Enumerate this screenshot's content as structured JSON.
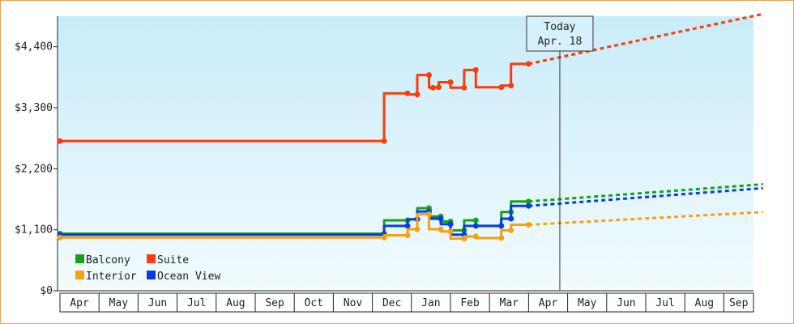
{
  "chart_data": {
    "type": "line",
    "title": "",
    "xlabel": "",
    "ylabel": "",
    "ylim": [
      0,
      4950
    ],
    "y_ticks": [
      0,
      1100,
      2200,
      3300,
      4400
    ],
    "y_tick_labels": [
      "$0",
      "$1,100",
      "$2,200",
      "$3,300",
      "$4,400"
    ],
    "x_range": [
      0,
      18
    ],
    "x_tick_labels": [
      "Apr",
      "May",
      "Jun",
      "Jul",
      "Aug",
      "Sep",
      "Oct",
      "Nov",
      "Dec",
      "Jan",
      "Feb",
      "Mar",
      "Apr",
      "May",
      "Jun",
      "Jul",
      "Aug",
      "Sep"
    ],
    "today": {
      "x": 12.8,
      "label_line1": "Today",
      "label_line2": "Apr. 18"
    },
    "legend": {
      "placement": "bottom-left"
    },
    "grid": false,
    "colors": {
      "frame": "#e8a15a",
      "bg_top": "#c9ecfa",
      "bg_bottom": "#f2fbfe"
    },
    "series": [
      {
        "name": "Suite",
        "color": "#ff3b0a",
        "points": [
          [
            0,
            2700
          ],
          [
            8.3,
            2700
          ],
          [
            8.3,
            3560
          ],
          [
            8.9,
            3560
          ],
          [
            8.9,
            3540
          ],
          [
            9.15,
            3540
          ],
          [
            9.15,
            3890
          ],
          [
            9.45,
            3890
          ],
          [
            9.45,
            3660
          ],
          [
            9.55,
            3660
          ],
          [
            9.55,
            3670
          ],
          [
            9.7,
            3670
          ],
          [
            9.7,
            3760
          ],
          [
            10.0,
            3760
          ],
          [
            10.0,
            3660
          ],
          [
            10.35,
            3660
          ],
          [
            10.35,
            3980
          ],
          [
            10.65,
            3980
          ],
          [
            10.65,
            3670
          ],
          [
            11.3,
            3670
          ],
          [
            11.3,
            3700
          ],
          [
            11.55,
            3700
          ],
          [
            11.55,
            4090
          ],
          [
            12.0,
            4090
          ]
        ],
        "projection": [
          [
            12.0,
            4090
          ],
          [
            18.0,
            4990
          ]
        ]
      },
      {
        "name": "Balcony",
        "color": "#17a317",
        "points": [
          [
            0,
            1030
          ],
          [
            8.3,
            1030
          ],
          [
            8.3,
            1270
          ],
          [
            8.9,
            1270
          ],
          [
            8.9,
            1290
          ],
          [
            9.15,
            1290
          ],
          [
            9.15,
            1490
          ],
          [
            9.45,
            1490
          ],
          [
            9.45,
            1340
          ],
          [
            9.75,
            1340
          ],
          [
            9.75,
            1250
          ],
          [
            10.0,
            1250
          ],
          [
            10.0,
            1090
          ],
          [
            10.35,
            1090
          ],
          [
            10.35,
            1270
          ],
          [
            10.65,
            1270
          ],
          [
            10.65,
            1170
          ],
          [
            11.3,
            1170
          ],
          [
            11.3,
            1420
          ],
          [
            11.55,
            1420
          ],
          [
            11.55,
            1610
          ],
          [
            12.0,
            1610
          ]
        ],
        "projection": [
          [
            12.0,
            1610
          ],
          [
            18.0,
            1920
          ]
        ]
      },
      {
        "name": "Ocean View",
        "color": "#0a3ce6",
        "points": [
          [
            0,
            1010
          ],
          [
            8.3,
            1010
          ],
          [
            8.3,
            1170
          ],
          [
            8.9,
            1170
          ],
          [
            8.9,
            1290
          ],
          [
            9.15,
            1290
          ],
          [
            9.15,
            1430
          ],
          [
            9.45,
            1430
          ],
          [
            9.45,
            1300
          ],
          [
            9.75,
            1300
          ],
          [
            9.75,
            1200
          ],
          [
            10.0,
            1200
          ],
          [
            10.0,
            1010
          ],
          [
            10.35,
            1010
          ],
          [
            10.35,
            1170
          ],
          [
            10.65,
            1170
          ],
          [
            10.65,
            1170
          ],
          [
            11.3,
            1170
          ],
          [
            11.3,
            1300
          ],
          [
            11.55,
            1300
          ],
          [
            11.55,
            1530
          ],
          [
            12.0,
            1530
          ]
        ],
        "projection": [
          [
            12.0,
            1530
          ],
          [
            18.0,
            1850
          ]
        ]
      },
      {
        "name": "Interior",
        "color": "#f5a20f",
        "points": [
          [
            0,
            960
          ],
          [
            8.3,
            960
          ],
          [
            8.3,
            1000
          ],
          [
            8.9,
            1000
          ],
          [
            8.9,
            1110
          ],
          [
            9.15,
            1110
          ],
          [
            9.15,
            1380
          ],
          [
            9.45,
            1380
          ],
          [
            9.45,
            1110
          ],
          [
            9.75,
            1110
          ],
          [
            9.75,
            1070
          ],
          [
            10.0,
            1070
          ],
          [
            10.0,
            940
          ],
          [
            10.35,
            940
          ],
          [
            10.35,
            980
          ],
          [
            10.65,
            980
          ],
          [
            10.65,
            950
          ],
          [
            11.3,
            950
          ],
          [
            11.3,
            1090
          ],
          [
            11.55,
            1090
          ],
          [
            11.55,
            1190
          ],
          [
            12.0,
            1190
          ]
        ],
        "projection": [
          [
            12.0,
            1190
          ],
          [
            18.0,
            1420
          ]
        ]
      }
    ],
    "legend_order": [
      "Balcony",
      "Suite",
      "Interior",
      "Ocean View"
    ]
  }
}
